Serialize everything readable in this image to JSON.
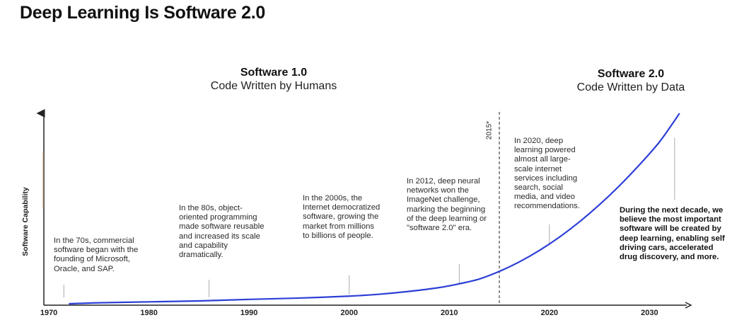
{
  "page": {
    "title": "Deep Learning Is Software 2.0",
    "era1": {
      "name": "Software 1.0",
      "subtitle": "Code Written by Humans"
    },
    "era2": {
      "name": "Software 2.0",
      "subtitle": "Code Written by Data"
    },
    "marker_label": "2015*"
  },
  "chart_data": {
    "type": "line",
    "title": "Deep Learning Is Software 2.0",
    "ylabel": "Software Capability",
    "xlabel": "",
    "xlim": [
      1969.5,
      2034
    ],
    "ylim": [
      0,
      100
    ],
    "x_ticks": [
      1970,
      1980,
      1990,
      2000,
      2010,
      2020,
      2030
    ],
    "grid": false,
    "legend": "none",
    "line_color": "#2d3fd6",
    "series": [
      {
        "x": [
          1972,
          1975,
          1980,
          1985,
          1990,
          1995,
          2000,
          2003,
          2006,
          2009,
          2011,
          2013,
          2015,
          2017,
          2019,
          2021,
          2023,
          2025,
          2027,
          2029,
          2031,
          2033
        ],
        "y": [
          0,
          0.5,
          1,
          1.5,
          2.3,
          3,
          4,
          5,
          6.5,
          8.5,
          10.5,
          13,
          17,
          22,
          28,
          35,
          43,
          52,
          62,
          73,
          85,
          100
        ]
      }
    ],
    "vertical_marker": {
      "x": 2015,
      "label": "2015*",
      "style": "dashed",
      "color": "#555555"
    },
    "annotations": [
      {
        "x": 1971.5,
        "text": "In the 70s, commercial software began with the founding of Microsoft, Oracle, and SAP."
      },
      {
        "x": 1986,
        "text": "In the 80s, object-oriented programming made software reusable and increased its scale and capability dramatically."
      },
      {
        "x": 2000,
        "text": "In the 2000s, the Internet democratized software, growing the market from millions to billions of people."
      },
      {
        "x": 2011,
        "text": "In 2012, deep neural networks won the ImageNet challenge, marking the beginning of the deep learning or \"software 2.0\" era."
      },
      {
        "x": 2020,
        "text": "In 2020, deep learning powered almost all large-scale internet services including search, social media, and video recommendations."
      },
      {
        "x": 2032.5,
        "text": "During the next decade, we believe the most important software will be created by deep learning, enabling self driving cars, accelerated drug discovery, and more."
      }
    ]
  }
}
